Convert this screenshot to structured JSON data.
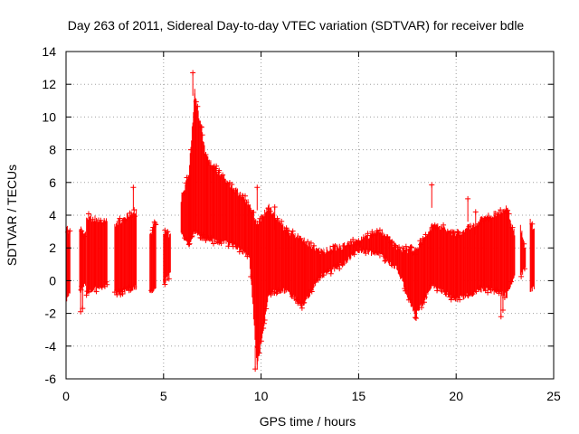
{
  "chart_data": {
    "type": "scatter",
    "title": "Day 263 of 2011, Sidereal Day-to-day VTEC variation (SDTVAR) for receiver bdle",
    "xlabel": "GPS time / hours",
    "ylabel": "SDTVAR / TECUs",
    "xlim": [
      0,
      25
    ],
    "ylim": [
      -6,
      14
    ],
    "xticks": [
      0,
      5,
      10,
      15,
      20,
      25
    ],
    "yticks": [
      -6,
      -4,
      -2,
      0,
      2,
      4,
      6,
      8,
      10,
      12,
      14
    ],
    "grid": true,
    "marker": "+",
    "series_color": "#ff0000",
    "series": [
      {
        "name": "SDTVAR",
        "segments": [
          {
            "x": [
              0.0,
              0.2
            ],
            "y_low": [
              -1.2,
              -0.8
            ],
            "y_high": [
              3.3,
              3.0
            ]
          },
          {
            "x": [
              0.7,
              1.0
            ],
            "y_low": [
              -0.6,
              -0.3
            ],
            "y_high": [
              3.2,
              2.8
            ]
          },
          {
            "x": [
              1.05,
              2.1
            ],
            "y_low": [
              -0.8,
              -0.2
            ],
            "y_high": [
              3.9,
              3.6
            ]
          },
          {
            "x": [
              2.5,
              3.6
            ],
            "y_low": [
              -0.8,
              -0.4
            ],
            "y_high": [
              3.5,
              4.2
            ]
          },
          {
            "x": [
              4.3,
              4.6
            ],
            "y_low": [
              -0.8,
              -0.5
            ],
            "y_high": [
              2.8,
              3.6
            ]
          },
          {
            "x": [
              5.0,
              5.35
            ],
            "y_low": [
              -0.2,
              0.4
            ],
            "y_high": [
              2.9,
              2.8
            ]
          },
          {
            "x": [
              5.9,
              6.3
            ],
            "y_low": [
              2.9,
              2.2
            ],
            "y_high": [
              5.0,
              6.5
            ]
          },
          {
            "x": [
              6.3,
              6.6
            ],
            "y_low": [
              2.2,
              3.0
            ],
            "y_high": [
              6.5,
              11.5
            ]
          },
          {
            "x": [
              6.6,
              7.2
            ],
            "y_low": [
              3.0,
              2.5
            ],
            "y_high": [
              11.5,
              7.5
            ]
          },
          {
            "x": [
              7.2,
              8.5
            ],
            "y_low": [
              2.5,
              2.2
            ],
            "y_high": [
              7.5,
              5.8
            ]
          },
          {
            "x": [
              8.5,
              9.4
            ],
            "y_low": [
              2.2,
              1.5
            ],
            "y_high": [
              5.8,
              4.7
            ]
          },
          {
            "x": [
              9.4,
              9.8
            ],
            "y_low": [
              1.5,
              -5.3
            ],
            "y_high": [
              4.7,
              3.5
            ]
          },
          {
            "x": [
              9.8,
              10.4
            ],
            "y_low": [
              -5.3,
              -0.8
            ],
            "y_high": [
              3.5,
              4.5
            ]
          },
          {
            "x": [
              10.4,
              11.3
            ],
            "y_low": [
              -0.8,
              -0.6
            ],
            "y_high": [
              4.5,
              3.0
            ]
          },
          {
            "x": [
              11.3,
              12.1
            ],
            "y_low": [
              -0.6,
              -1.6
            ],
            "y_high": [
              3.0,
              2.6
            ]
          },
          {
            "x": [
              12.1,
              13.0
            ],
            "y_low": [
              -1.6,
              0.2
            ],
            "y_high": [
              2.6,
              1.8
            ]
          },
          {
            "x": [
              13.0,
              14.2
            ],
            "y_low": [
              0.2,
              1.0
            ],
            "y_high": [
              1.8,
              2.1
            ]
          },
          {
            "x": [
              14.2,
              15.0
            ],
            "y_low": [
              1.0,
              1.9
            ],
            "y_high": [
              2.1,
              2.5
            ]
          },
          {
            "x": [
              15.0,
              16.2
            ],
            "y_low": [
              1.9,
              1.5
            ],
            "y_high": [
              2.5,
              3.0
            ]
          },
          {
            "x": [
              16.2,
              17.0
            ],
            "y_low": [
              1.5,
              0.7
            ],
            "y_high": [
              3.0,
              2.0
            ]
          },
          {
            "x": [
              17.0,
              17.9
            ],
            "y_low": [
              0.7,
              -2.2
            ],
            "y_high": [
              2.0,
              1.8
            ]
          },
          {
            "x": [
              17.9,
              18.8
            ],
            "y_low": [
              -2.2,
              -0.3
            ],
            "y_high": [
              1.8,
              3.5
            ]
          },
          {
            "x": [
              18.8,
              20.0
            ],
            "y_low": [
              -0.3,
              -1.2
            ],
            "y_high": [
              3.5,
              2.8
            ]
          },
          {
            "x": [
              20.0,
              21.4
            ],
            "y_low": [
              -1.2,
              -0.5
            ],
            "y_high": [
              2.8,
              3.8
            ]
          },
          {
            "x": [
              21.4,
              22.6
            ],
            "y_low": [
              -0.5,
              -0.9
            ],
            "y_high": [
              3.8,
              4.4
            ]
          },
          {
            "x": [
              22.6,
              23.0
            ],
            "y_low": [
              -0.9,
              0.4
            ],
            "y_high": [
              4.4,
              2.9
            ]
          },
          {
            "x": [
              23.3,
              23.55
            ],
            "y_low": [
              0.3,
              0.8
            ],
            "y_high": [
              3.2,
              2.0
            ]
          },
          {
            "x": [
              23.8,
              24.0
            ],
            "y_low": [
              -0.7,
              -0.4
            ],
            "y_high": [
              3.6,
              3.2
            ]
          }
        ],
        "outliers": [
          {
            "x": 0.75,
            "y": -1.9
          },
          {
            "x": 0.85,
            "y": -1.7
          },
          {
            "x": 3.45,
            "y": 5.7
          },
          {
            "x": 6.5,
            "y": 12.7
          },
          {
            "x": 9.7,
            "y": -5.4
          },
          {
            "x": 9.8,
            "y": 5.7
          },
          {
            "x": 10.7,
            "y": 4.5
          },
          {
            "x": 18.75,
            "y": 5.85
          },
          {
            "x": 20.6,
            "y": 5.0
          },
          {
            "x": 21.0,
            "y": 4.2
          },
          {
            "x": 22.3,
            "y": -2.2
          },
          {
            "x": 22.4,
            "y": -1.8
          },
          {
            "x": 17.95,
            "y": -2.3
          }
        ]
      }
    ]
  }
}
